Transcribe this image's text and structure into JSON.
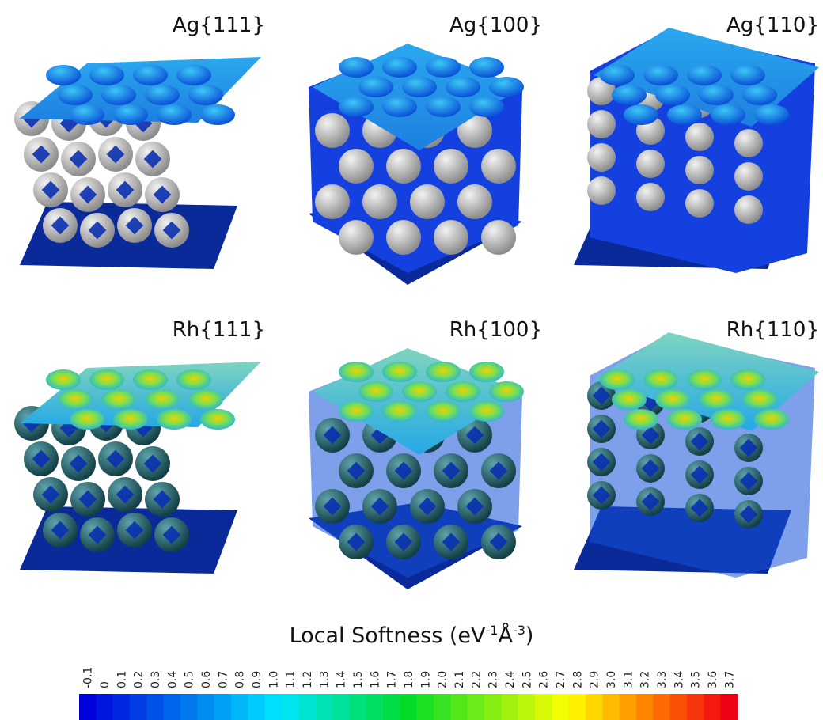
{
  "panels": [
    {
      "label": "Ag{111}"
    },
    {
      "label": "Ag{100}"
    },
    {
      "label": "Ag{110}"
    },
    {
      "label": "Rh{111}"
    },
    {
      "label": "Rh{100}"
    },
    {
      "label": "Rh{110}"
    }
  ],
  "colorbar": {
    "title": {
      "text": "Local Softness (eV",
      "sup1": "-1",
      "unit": "Å",
      "sup2": "-3",
      "close": ")"
    },
    "ticks": [
      "-0.1",
      "0",
      "0.1",
      "0.2",
      "0.3",
      "0.4",
      "0.5",
      "0.6",
      "0.7",
      "0.8",
      "0.9",
      "1.0",
      "1.1",
      "1.2",
      "1.3",
      "1.4",
      "1.5",
      "1.6",
      "1.7",
      "1.8",
      "1.9",
      "2.0",
      "2.1",
      "2.2",
      "2.3",
      "2.4",
      "2.5",
      "2.6",
      "2.7",
      "2.8",
      "2.9",
      "3.0",
      "3.1",
      "3.2",
      "3.3",
      "3.4",
      "3.5",
      "3.6",
      "3.7"
    ]
  }
}
